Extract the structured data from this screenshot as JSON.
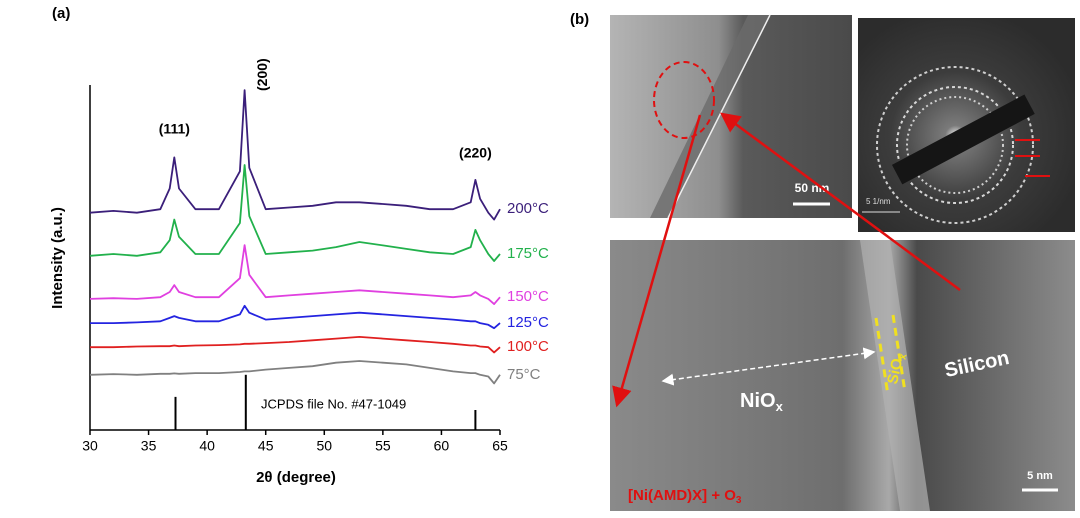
{
  "chart_data": {
    "type": "line",
    "panel_label": "(a)",
    "x_label": "2θ (degree)",
    "y_label": "Intensity (a.u.)",
    "xlim": [
      30,
      65
    ],
    "xticks": [
      30,
      35,
      40,
      45,
      50,
      55,
      60,
      65
    ],
    "ylim": [
      0,
      100
    ],
    "x": [
      30,
      32,
      34,
      36,
      36.8,
      37.2,
      37.6,
      39,
      41,
      42.8,
      43.2,
      43.6,
      45,
      47,
      49,
      51,
      53,
      55,
      57,
      59,
      61,
      62.5,
      62.9,
      63.3,
      64,
      64.5,
      65
    ],
    "series": [
      {
        "name": "200°C",
        "color": "#3b1f7a",
        "values": [
          63,
          63.5,
          63,
          64,
          70,
          79,
          70,
          64,
          64,
          75,
          98.5,
          76,
          64,
          64.5,
          65,
          66,
          66,
          65.5,
          65,
          64,
          64,
          66,
          72.5,
          67,
          63,
          61,
          64
        ]
      },
      {
        "name": "175°C",
        "color": "#22b14c",
        "values": [
          50.5,
          51,
          50.5,
          51.5,
          55,
          61,
          56,
          51,
          51,
          60,
          76.8,
          62,
          51,
          51.5,
          52,
          53,
          54.5,
          53.5,
          52.5,
          51.5,
          51,
          53,
          58,
          55,
          51,
          49,
          51
        ]
      },
      {
        "name": "150°C",
        "color": "#e040e0",
        "values": [
          38,
          38.2,
          38,
          38.5,
          40,
          42,
          40,
          38.5,
          38.5,
          44,
          53.6,
          45,
          38.5,
          39,
          39.5,
          40,
          40.5,
          40,
          39.5,
          39,
          38.5,
          39,
          40,
          39,
          38,
          36.5,
          38.5
        ]
      },
      {
        "name": "125°C",
        "color": "#2424e0",
        "values": [
          31,
          31,
          31.2,
          31.5,
          32.5,
          33,
          32.5,
          31.5,
          31.5,
          33.5,
          36,
          34,
          32,
          32.5,
          33,
          33.5,
          34,
          33.5,
          33,
          32.5,
          32,
          31.5,
          31.5,
          31,
          30.5,
          29.5,
          31
        ]
      },
      {
        "name": "100°C",
        "color": "#e02020",
        "values": [
          24,
          24,
          24.2,
          24.3,
          24.3,
          24.5,
          24.3,
          24.5,
          24.6,
          24.8,
          25,
          25,
          25.2,
          25.5,
          26,
          26.5,
          27,
          26.5,
          26,
          25.5,
          25,
          24.5,
          24.5,
          24.2,
          24,
          22.5,
          24
        ]
      },
      {
        "name": "75°C",
        "color": "#808080",
        "values": [
          16,
          16.2,
          16,
          16.3,
          16.3,
          16.4,
          16.3,
          16.5,
          16.5,
          16.8,
          17,
          17,
          17.5,
          18,
          18.5,
          19.5,
          20,
          19.5,
          19,
          18,
          17,
          16.5,
          16.5,
          16,
          15.5,
          13.5,
          16
        ]
      }
    ],
    "annotations": [
      {
        "text": "(111)",
        "x": 37.2,
        "y": 87
      },
      {
        "text": "(200)",
        "x": 44.8,
        "y": 103
      },
      {
        "text": "(220)",
        "x": 62.9,
        "y": 80
      }
    ],
    "reference": {
      "label": "JCPDS file No. #47-1049",
      "x": [
        37.3,
        43.3,
        62.9
      ],
      "values": [
        9.6,
        16,
        5.8
      ]
    }
  },
  "panel_b": {
    "panel_label": "(b)",
    "scale_top": "50 nm",
    "scale_diffraction": "5 1/nm",
    "scale_bottom": "5 nm",
    "region_nio": {
      "text": "NiO",
      "sub": "x"
    },
    "region_sio": {
      "text": "SiO",
      "sub": "x"
    },
    "region_si": "Silicon",
    "precursor": {
      "text": "[Ni(AMD)X] + O",
      "sub": "3"
    }
  }
}
